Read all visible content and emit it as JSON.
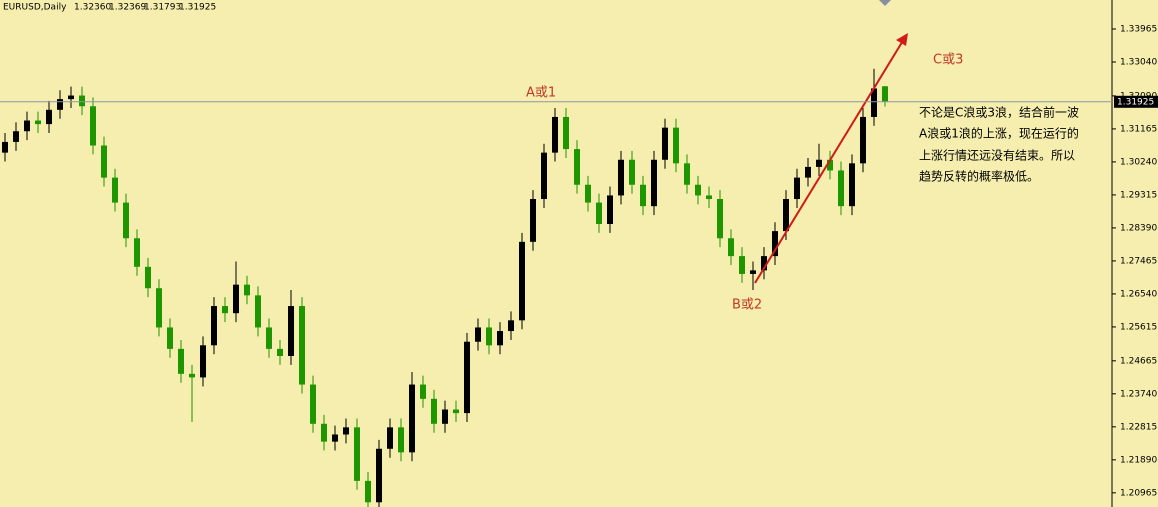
{
  "chart_data": {
    "type": "candlestick",
    "symbol": "EURUSD,Daily",
    "last_bar_labels": [
      "1.32360",
      "1.32369",
      "1.31793",
      "1.31925"
    ],
    "up_color": "#000000",
    "down_color": "#1e9600",
    "price_line_color": "#8c96a8",
    "ylim": [
      1.20568,
      1.34778
    ],
    "yticks": [
      1.33965,
      {
        "value": 1.3304,
        "label": "1.33040"
      },
      {
        "value": 1.3209,
        "label": "1.32090"
      },
      1.31165,
      {
        "value": 1.3024,
        "label": "1.30240"
      },
      1.29315,
      {
        "value": 1.2839,
        "label": "1.28390"
      },
      1.27465,
      {
        "value": 1.2654,
        "label": "1.26540"
      },
      1.25615,
      1.24665,
      {
        "value": 1.2374,
        "label": "1.23740"
      },
      1.22815,
      {
        "value": 1.2189,
        "label": "1.21890"
      },
      1.20965
    ],
    "annotations": [
      "A或1",
      "B或2",
      "C或3"
    ],
    "note_lines": [
      "不论是C浪或3浪，结合前一波",
      "A浪或1浪的上涨，现在运行的",
      "上涨行情还远没有结束。所以",
      "趋势反转的概率极低。"
    ],
    "candles": [
      [
        1.305,
        1.3105,
        1.3025,
        1.308
      ],
      [
        1.308,
        1.3135,
        1.3055,
        1.311
      ],
      [
        1.311,
        1.3165,
        1.3085,
        1.314
      ],
      [
        1.314,
        1.3165,
        1.3105,
        1.313
      ],
      [
        1.313,
        1.3195,
        1.3105,
        1.317
      ],
      [
        1.317,
        1.3225,
        1.3145,
        1.32
      ],
      [
        1.32,
        1.3235,
        1.3175,
        1.321
      ],
      [
        1.321,
        1.3235,
        1.3155,
        1.318
      ],
      [
        1.318,
        1.3205,
        1.3045,
        1.307
      ],
      [
        1.307,
        1.3095,
        1.2955,
        1.298
      ],
      [
        1.298,
        1.3005,
        1.2885,
        1.291
      ],
      [
        1.291,
        1.2935,
        1.2785,
        1.281
      ],
      [
        1.281,
        1.2835,
        1.2705,
        1.273
      ],
      [
        1.273,
        1.2755,
        1.2645,
        1.267
      ],
      [
        1.267,
        1.2695,
        1.2535,
        1.256
      ],
      [
        1.256,
        1.2585,
        1.2475,
        1.25
      ],
      [
        1.25,
        1.2525,
        1.2405,
        1.243
      ],
      [
        1.243,
        1.2455,
        1.2295,
        1.242
      ],
      [
        1.242,
        1.2535,
        1.2395,
        1.251
      ],
      [
        1.251,
        1.2645,
        1.2485,
        1.262
      ],
      [
        1.262,
        1.2645,
        1.2575,
        1.26
      ],
      [
        1.26,
        1.2745,
        1.2575,
        1.268
      ],
      [
        1.268,
        1.2705,
        1.2625,
        1.265
      ],
      [
        1.265,
        1.2675,
        1.2535,
        1.256
      ],
      [
        1.256,
        1.2585,
        1.2475,
        1.25
      ],
      [
        1.25,
        1.2525,
        1.2455,
        1.248
      ],
      [
        1.248,
        1.2665,
        1.2455,
        1.262
      ],
      [
        1.262,
        1.2645,
        1.2375,
        1.24
      ],
      [
        1.24,
        1.2425,
        1.2265,
        1.229
      ],
      [
        1.229,
        1.2315,
        1.2215,
        1.224
      ],
      [
        1.224,
        1.2285,
        1.2215,
        1.226
      ],
      [
        1.226,
        1.2305,
        1.2235,
        1.228
      ],
      [
        1.228,
        1.2305,
        1.2105,
        1.213
      ],
      [
        1.213,
        1.2155,
        1.2045,
        1.207
      ],
      [
        1.207,
        1.2245,
        1.2045,
        1.222
      ],
      [
        1.222,
        1.2305,
        1.2195,
        1.228
      ],
      [
        1.228,
        1.2305,
        1.2185,
        1.221
      ],
      [
        1.221,
        1.2435,
        1.2185,
        1.24
      ],
      [
        1.24,
        1.2425,
        1.2335,
        1.236
      ],
      [
        1.236,
        1.2385,
        1.2265,
        1.229
      ],
      [
        1.229,
        1.2355,
        1.2265,
        1.233
      ],
      [
        1.233,
        1.2355,
        1.2295,
        1.232
      ],
      [
        1.232,
        1.2545,
        1.2295,
        1.252
      ],
      [
        1.252,
        1.2585,
        1.2495,
        1.256
      ],
      [
        1.256,
        1.2585,
        1.2485,
        1.251
      ],
      [
        1.251,
        1.2575,
        1.2485,
        1.255
      ],
      [
        1.255,
        1.2605,
        1.2525,
        1.258
      ],
      [
        1.258,
        1.2825,
        1.2555,
        1.28
      ],
      [
        1.28,
        1.2945,
        1.2775,
        1.292
      ],
      [
        1.292,
        1.3075,
        1.2895,
        1.305
      ],
      [
        1.305,
        1.3175,
        1.3025,
        1.315
      ],
      [
        1.315,
        1.3175,
        1.3035,
        1.306
      ],
      [
        1.306,
        1.3085,
        1.2935,
        1.296
      ],
      [
        1.296,
        1.2985,
        1.2885,
        1.291
      ],
      [
        1.291,
        1.2935,
        1.2825,
        1.285
      ],
      [
        1.285,
        1.2955,
        1.2825,
        1.293
      ],
      [
        1.293,
        1.3055,
        1.2905,
        1.303
      ],
      [
        1.303,
        1.3055,
        1.2935,
        1.296
      ],
      [
        1.296,
        1.2985,
        1.2875,
        1.29
      ],
      [
        1.29,
        1.3055,
        1.2875,
        1.303
      ],
      [
        1.303,
        1.3145,
        1.3005,
        1.312
      ],
      [
        1.312,
        1.3145,
        1.2995,
        1.302
      ],
      [
        1.302,
        1.3045,
        1.2935,
        1.296
      ],
      [
        1.296,
        1.2985,
        1.2905,
        1.293
      ],
      [
        1.293,
        1.2955,
        1.2895,
        1.292
      ],
      [
        1.292,
        1.2945,
        1.2785,
        1.281
      ],
      [
        1.281,
        1.2835,
        1.2735,
        1.276
      ],
      [
        1.276,
        1.2785,
        1.2685,
        1.271
      ],
      [
        1.271,
        1.2745,
        1.2665,
        1.272
      ],
      [
        1.272,
        1.2785,
        1.2695,
        1.276
      ],
      [
        1.276,
        1.2855,
        1.2735,
        1.283
      ],
      [
        1.283,
        1.2945,
        1.2805,
        1.292
      ],
      [
        1.292,
        1.3005,
        1.2895,
        1.298
      ],
      [
        1.298,
        1.3035,
        1.2955,
        1.301
      ],
      [
        1.301,
        1.3075,
        1.2985,
        1.303
      ],
      [
        1.303,
        1.3055,
        1.2975,
        1.3
      ],
      [
        1.3,
        1.3025,
        1.2875,
        1.29
      ],
      [
        1.29,
        1.3045,
        1.2875,
        1.302
      ],
      [
        1.302,
        1.3175,
        1.2995,
        1.315
      ],
      [
        1.315,
        1.3285,
        1.3125,
        1.323
      ],
      [
        1.3236,
        1.32369,
        1.31793,
        1.31925
      ]
    ]
  }
}
